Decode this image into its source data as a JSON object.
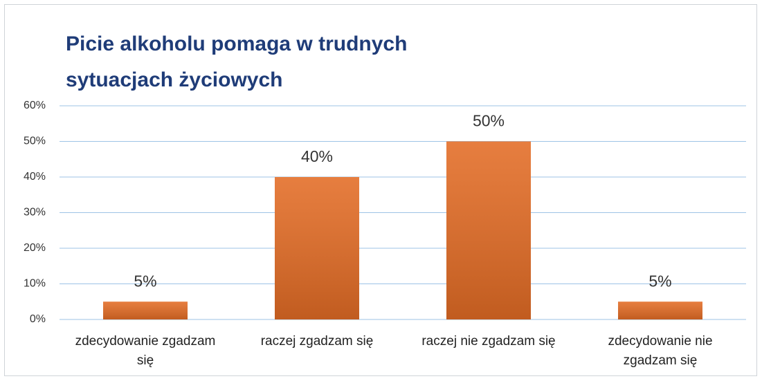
{
  "chart_data": {
    "type": "bar",
    "title": "Picie alkoholu pomaga w trudnych sytuacjach życiowych",
    "categories": [
      "zdecydowanie zgadzam się",
      "raczej zgadzam się",
      "raczej nie zgadzam się",
      "zdecydowanie nie zgadzam się"
    ],
    "values": [
      5,
      40,
      50,
      5
    ],
    "value_labels": [
      "5%",
      "40%",
      "50%",
      "5%"
    ],
    "color": "#e36c25",
    "ylim": [
      0,
      60
    ],
    "yticks": [
      {
        "value": 0,
        "label": "0%"
      },
      {
        "value": 10,
        "label": "10%"
      },
      {
        "value": 20,
        "label": "20%"
      },
      {
        "value": 30,
        "label": "30%"
      },
      {
        "value": 40,
        "label": "40%"
      },
      {
        "value": 50,
        "label": "50%"
      },
      {
        "value": 60,
        "label": "60%"
      }
    ],
    "grid": true
  }
}
